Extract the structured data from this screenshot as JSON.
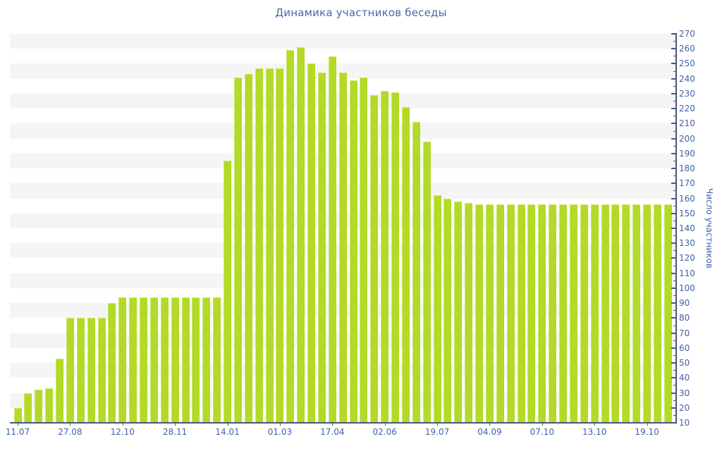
{
  "chart_data": {
    "type": "bar",
    "title": "Динамика участников беседы",
    "ylabel": "Число участников",
    "xlabel": "",
    "ylim": [
      10,
      270
    ],
    "y_major_step": 10,
    "y_minor_step": 5,
    "grid": "horizontal-stripes",
    "legend": "none",
    "x_tick_labels": [
      "11.07",
      "27.08",
      "12.10",
      "28.11",
      "14.01",
      "01.03",
      "17.04",
      "02.06",
      "19.07",
      "04.09",
      "07.10",
      "13.10",
      "19.10"
    ],
    "x_label_every_n_bars": 5,
    "bar_values": [
      20,
      30,
      32,
      33,
      53,
      80,
      80,
      80,
      80,
      90,
      94,
      94,
      94,
      94,
      94,
      94,
      94,
      94,
      94,
      94,
      185,
      241,
      243,
      247,
      247,
      247,
      259,
      261,
      250,
      244,
      255,
      244,
      239,
      241,
      229,
      232,
      231,
      221,
      211,
      198,
      162,
      160,
      158,
      157,
      156,
      156,
      156,
      156,
      156,
      156,
      156,
      156,
      156,
      156,
      156,
      156,
      156,
      156,
      156,
      156,
      156,
      156,
      156
    ],
    "colors": {
      "bar": "#b2da26",
      "axis": "#4a5580",
      "tick_label": "#3f62a8",
      "title": "#4a68a8",
      "stripe": "#f5f5f5",
      "background": "#ffffff"
    }
  }
}
